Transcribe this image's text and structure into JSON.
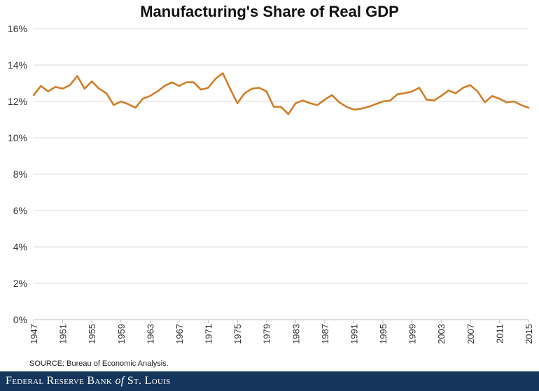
{
  "chart_data": {
    "type": "line",
    "title": "Manufacturing's Share of Real GDP",
    "ylim": [
      0,
      16
    ],
    "y_ticks": [
      "0%",
      "2%",
      "4%",
      "6%",
      "8%",
      "10%",
      "12%",
      "14%",
      "16%"
    ],
    "y_tick_values": [
      0,
      2,
      4,
      6,
      8,
      10,
      12,
      14,
      16
    ],
    "x_ticks": [
      "1947",
      "1951",
      "1955",
      "1959",
      "1963",
      "1967",
      "1971",
      "1975",
      "1979",
      "1983",
      "1987",
      "1991",
      "1995",
      "1999",
      "2003",
      "2007",
      "2011",
      "2015"
    ],
    "x_tick_values": [
      1947,
      1951,
      1955,
      1959,
      1963,
      1967,
      1971,
      1975,
      1979,
      1983,
      1987,
      1991,
      1995,
      1999,
      2003,
      2007,
      2011,
      2015
    ],
    "xlim": [
      1947,
      2015
    ],
    "grid": true,
    "line_color": "#d17d27",
    "series": [
      {
        "x": [
          1947,
          1948,
          1949,
          1950,
          1951,
          1952,
          1953,
          1954,
          1955,
          1956,
          1957,
          1958,
          1959,
          1960,
          1961,
          1962,
          1963,
          1964,
          1965,
          1966,
          1967,
          1968,
          1969,
          1970,
          1971,
          1972,
          1973,
          1974,
          1975,
          1976,
          1977,
          1978,
          1979,
          1980,
          1981,
          1982,
          1983,
          1984,
          1985,
          1986,
          1987,
          1988,
          1989,
          1990,
          1991,
          1992,
          1993,
          1994,
          1995,
          1996,
          1997,
          1998,
          1999,
          2000,
          2001,
          2002,
          2003,
          2004,
          2005,
          2006,
          2007,
          2008,
          2009,
          2010,
          2011,
          2012,
          2013,
          2014,
          2015
        ],
        "values": [
          12.35,
          12.85,
          12.55,
          12.8,
          12.7,
          12.9,
          13.4,
          12.7,
          13.1,
          12.7,
          12.45,
          11.8,
          12.0,
          11.85,
          11.65,
          12.15,
          12.3,
          12.55,
          12.85,
          13.05,
          12.85,
          13.05,
          13.05,
          12.65,
          12.75,
          13.25,
          13.55,
          12.7,
          11.9,
          12.45,
          12.7,
          12.75,
          12.55,
          11.7,
          11.7,
          11.3,
          11.9,
          12.05,
          11.9,
          11.8,
          12.1,
          12.35,
          11.95,
          11.7,
          11.55,
          11.6,
          11.7,
          11.85,
          12.0,
          12.05,
          12.4,
          12.45,
          12.55,
          12.75,
          12.1,
          12.05,
          12.3,
          12.6,
          12.45,
          12.75,
          12.9,
          12.55,
          11.95,
          12.3,
          12.15,
          11.95,
          12.0,
          11.8,
          11.65
        ]
      }
    ]
  },
  "source": "SOURCE: Bureau of Economic Analysis.",
  "footer": {
    "prefix": "Federal Reserve Bank",
    "of": "of",
    "suffix": "St. Louis",
    "background": "#14365d"
  }
}
